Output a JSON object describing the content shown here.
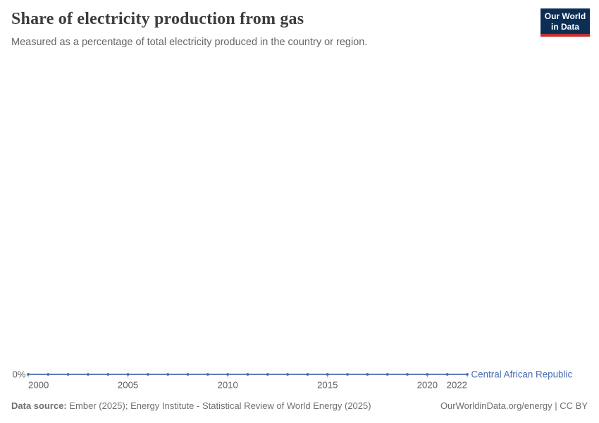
{
  "header": {
    "title": "Share of electricity production from gas",
    "subtitle": "Measured as a percentage of total electricity produced in the country or region."
  },
  "logo": {
    "line1": "Our World",
    "line2": "in Data",
    "bg_color": "#0d2e54",
    "accent_color": "#c3312f"
  },
  "footer": {
    "source_label": "Data source:",
    "source_text": " Ember (2025); Energy Institute - Statistical Review of World Energy (2025)",
    "right_text": "OurWorldinData.org/energy | CC BY"
  },
  "chart_data": {
    "type": "line",
    "title": "Share of electricity production from gas",
    "xlabel": "",
    "ylabel": "",
    "xlim": [
      2000,
      2022
    ],
    "xticks": [
      2000,
      2005,
      2010,
      2015,
      2020,
      2022
    ],
    "yticks": [
      {
        "value": 0,
        "label": "0%"
      }
    ],
    "grid": false,
    "legend_position": "end-of-line-label",
    "series": [
      {
        "name": "Central African Republic",
        "color": "#4a6bb1",
        "x": [
          2000,
          2001,
          2002,
          2003,
          2004,
          2005,
          2006,
          2007,
          2008,
          2009,
          2010,
          2011,
          2012,
          2013,
          2014,
          2015,
          2016,
          2017,
          2018,
          2019,
          2020,
          2021,
          2022
        ],
        "values": [
          0,
          0,
          0,
          0,
          0,
          0,
          0,
          0,
          0,
          0,
          0,
          0,
          0,
          0,
          0,
          0,
          0,
          0,
          0,
          0,
          0,
          0,
          0
        ]
      }
    ],
    "colors": {
      "axis_text": "#5f5f5f",
      "tick_mark": "#a8a8a8"
    }
  }
}
